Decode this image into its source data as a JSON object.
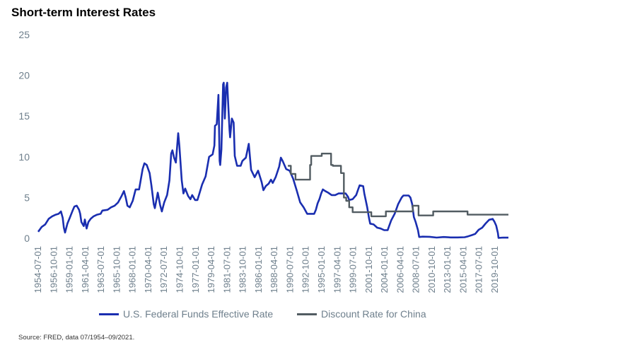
{
  "title": "Short-term Interest Rates",
  "source": "Source: FRED, data 07/1954–09/2021.",
  "colors": {
    "fed": "#1a2eb0",
    "china": "#525c62",
    "tick": "#6e7f8c"
  },
  "chart_data": {
    "type": "line",
    "title": "Short-term Interest Rates",
    "ylim": [
      0,
      25
    ],
    "yticks": [
      0,
      5,
      10,
      15,
      20,
      25
    ],
    "grid": false,
    "legend_position": "bottom",
    "x_range": [
      "1954-07-01",
      "2021-09-01"
    ],
    "x_tick_labels": [
      "1954-07-01",
      "1956-10-01",
      "1959-01-01",
      "1961-04-01",
      "1963-07-01",
      "1965-10-01",
      "1968-01-01",
      "1970-04-01",
      "1972-07-01",
      "1974-10-01",
      "1977-01-01",
      "1979-04-01",
      "1981-07-01",
      "1983-10-01",
      "1986-01-01",
      "1988-04-01",
      "1990-07-01",
      "1992-10-01",
      "1995-01-01",
      "1997-04-01",
      "1999-07-01",
      "2001-10-01",
      "2004-01-01",
      "2006-04-01",
      "2008-07-01",
      "2010-10-01",
      "2013-01-01",
      "2015-04-01",
      "2017-07-01",
      "2019-10-01"
    ],
    "series": [
      {
        "name": "U.S. Federal Funds Effective Rate",
        "color": "#1a2eb0",
        "step": false,
        "points": [
          [
            "1954-07",
            0.8
          ],
          [
            "1955-01",
            1.4
          ],
          [
            "1955-07",
            1.7
          ],
          [
            "1956-01",
            2.4
          ],
          [
            "1956-07",
            2.7
          ],
          [
            "1957-01",
            2.9
          ],
          [
            "1957-06",
            3.0
          ],
          [
            "1957-10",
            3.3
          ],
          [
            "1958-01",
            2.5
          ],
          [
            "1958-03",
            1.3
          ],
          [
            "1958-05",
            0.7
          ],
          [
            "1958-09",
            1.8
          ],
          [
            "1959-01",
            2.5
          ],
          [
            "1959-06",
            3.4
          ],
          [
            "1959-09",
            3.9
          ],
          [
            "1960-01",
            4.0
          ],
          [
            "1960-05",
            3.5
          ],
          [
            "1960-07",
            3.0
          ],
          [
            "1960-09",
            2.0
          ],
          [
            "1961-01",
            1.5
          ],
          [
            "1961-03",
            2.3
          ],
          [
            "1961-06",
            1.2
          ],
          [
            "1961-09",
            2.0
          ],
          [
            "1962-01",
            2.4
          ],
          [
            "1962-06",
            2.7
          ],
          [
            "1962-12",
            2.9
          ],
          [
            "1963-06",
            3.0
          ],
          [
            "1963-09",
            3.4
          ],
          [
            "1964-06",
            3.5
          ],
          [
            "1964-12",
            3.8
          ],
          [
            "1965-06",
            4.0
          ],
          [
            "1965-12",
            4.4
          ],
          [
            "1966-06",
            5.2
          ],
          [
            "1966-10",
            5.8
          ],
          [
            "1967-01",
            5.0
          ],
          [
            "1967-04",
            4.0
          ],
          [
            "1967-08",
            3.8
          ],
          [
            "1968-01",
            4.6
          ],
          [
            "1968-06",
            6.0
          ],
          [
            "1968-12",
            6.0
          ],
          [
            "1969-06",
            8.5
          ],
          [
            "1969-09",
            9.2
          ],
          [
            "1970-01",
            9.0
          ],
          [
            "1970-06",
            8.0
          ],
          [
            "1970-09",
            6.5
          ],
          [
            "1971-01",
            4.2
          ],
          [
            "1971-03",
            3.7
          ],
          [
            "1971-08",
            5.6
          ],
          [
            "1971-12",
            4.1
          ],
          [
            "1972-03",
            3.3
          ],
          [
            "1972-07",
            4.4
          ],
          [
            "1972-12",
            5.3
          ],
          [
            "1973-04",
            7.1
          ],
          [
            "1973-07",
            10.4
          ],
          [
            "1973-09",
            10.8
          ],
          [
            "1973-12",
            9.9
          ],
          [
            "1974-03",
            9.3
          ],
          [
            "1974-07",
            12.9
          ],
          [
            "1974-09",
            11.3
          ],
          [
            "1975-01",
            7.1
          ],
          [
            "1975-04",
            5.5
          ],
          [
            "1975-07",
            6.1
          ],
          [
            "1975-12",
            5.2
          ],
          [
            "1976-04",
            4.8
          ],
          [
            "1976-07",
            5.3
          ],
          [
            "1976-12",
            4.7
          ],
          [
            "1977-04",
            4.7
          ],
          [
            "1977-07",
            5.4
          ],
          [
            "1977-12",
            6.6
          ],
          [
            "1978-06",
            7.6
          ],
          [
            "1978-12",
            10.0
          ],
          [
            "1979-06",
            10.3
          ],
          [
            "1979-09",
            11.4
          ],
          [
            "1979-10",
            13.8
          ],
          [
            "1980-01",
            14.0
          ],
          [
            "1980-04",
            17.6
          ],
          [
            "1980-06",
            9.5
          ],
          [
            "1980-07",
            9.0
          ],
          [
            "1980-09",
            10.9
          ],
          [
            "1980-12",
            18.9
          ],
          [
            "1981-01",
            19.1
          ],
          [
            "1981-03",
            14.7
          ],
          [
            "1981-05",
            18.5
          ],
          [
            "1981-07",
            19.1
          ],
          [
            "1981-09",
            16.0
          ],
          [
            "1981-11",
            13.3
          ],
          [
            "1981-12",
            12.4
          ],
          [
            "1982-03",
            14.7
          ],
          [
            "1982-06",
            14.2
          ],
          [
            "1982-08",
            10.1
          ],
          [
            "1982-12",
            8.9
          ],
          [
            "1983-06",
            8.9
          ],
          [
            "1983-09",
            9.5
          ],
          [
            "1984-03",
            9.9
          ],
          [
            "1984-08",
            11.6
          ],
          [
            "1984-12",
            8.4
          ],
          [
            "1985-06",
            7.5
          ],
          [
            "1985-12",
            8.3
          ],
          [
            "1986-06",
            6.9
          ],
          [
            "1986-09",
            5.9
          ],
          [
            "1987-01",
            6.4
          ],
          [
            "1987-06",
            6.7
          ],
          [
            "1987-10",
            7.2
          ],
          [
            "1988-01",
            6.8
          ],
          [
            "1988-06",
            7.5
          ],
          [
            "1988-12",
            8.8
          ],
          [
            "1989-03",
            9.9
          ],
          [
            "1989-06",
            9.5
          ],
          [
            "1989-12",
            8.5
          ],
          [
            "1990-06",
            8.3
          ],
          [
            "1990-12",
            7.3
          ],
          [
            "1991-06",
            5.9
          ],
          [
            "1991-12",
            4.4
          ],
          [
            "1992-06",
            3.8
          ],
          [
            "1992-12",
            3.0
          ],
          [
            "1993-06",
            3.0
          ],
          [
            "1993-12",
            3.0
          ],
          [
            "1994-03",
            3.5
          ],
          [
            "1994-06",
            4.3
          ],
          [
            "1994-09",
            4.8
          ],
          [
            "1994-12",
            5.5
          ],
          [
            "1995-03",
            6.0
          ],
          [
            "1995-07",
            5.8
          ],
          [
            "1995-12",
            5.6
          ],
          [
            "1996-06",
            5.3
          ],
          [
            "1996-12",
            5.3
          ],
          [
            "1997-06",
            5.5
          ],
          [
            "1997-12",
            5.5
          ],
          [
            "1998-06",
            5.5
          ],
          [
            "1998-10",
            5.1
          ],
          [
            "1998-12",
            4.7
          ],
          [
            "1999-06",
            4.8
          ],
          [
            "1999-12",
            5.3
          ],
          [
            "2000-03",
            5.9
          ],
          [
            "2000-06",
            6.5
          ],
          [
            "2000-12",
            6.4
          ],
          [
            "2001-02",
            5.5
          ],
          [
            "2001-04",
            4.8
          ],
          [
            "2001-07",
            3.8
          ],
          [
            "2001-10",
            2.5
          ],
          [
            "2001-12",
            1.8
          ],
          [
            "2002-06",
            1.7
          ],
          [
            "2002-12",
            1.3
          ],
          [
            "2003-06",
            1.2
          ],
          [
            "2003-12",
            1.0
          ],
          [
            "2004-06",
            1.0
          ],
          [
            "2004-09",
            1.6
          ],
          [
            "2004-12",
            2.2
          ],
          [
            "2005-06",
            3.0
          ],
          [
            "2005-12",
            4.2
          ],
          [
            "2006-06",
            5.0
          ],
          [
            "2006-09",
            5.25
          ],
          [
            "2007-06",
            5.25
          ],
          [
            "2007-09",
            5.0
          ],
          [
            "2007-12",
            4.2
          ],
          [
            "2008-03",
            2.6
          ],
          [
            "2008-06",
            2.0
          ],
          [
            "2008-10",
            1.0
          ],
          [
            "2008-12",
            0.16
          ],
          [
            "2009-06",
            0.2
          ],
          [
            "2010-06",
            0.18
          ],
          [
            "2011-06",
            0.09
          ],
          [
            "2012-06",
            0.16
          ],
          [
            "2013-06",
            0.1
          ],
          [
            "2014-06",
            0.1
          ],
          [
            "2015-06",
            0.13
          ],
          [
            "2015-12",
            0.24
          ],
          [
            "2016-06",
            0.38
          ],
          [
            "2016-12",
            0.54
          ],
          [
            "2017-06",
            1.04
          ],
          [
            "2017-12",
            1.3
          ],
          [
            "2018-06",
            1.82
          ],
          [
            "2018-12",
            2.27
          ],
          [
            "2019-06",
            2.38
          ],
          [
            "2019-09",
            2.04
          ],
          [
            "2019-12",
            1.55
          ],
          [
            "2020-03",
            0.65
          ],
          [
            "2020-04",
            0.05
          ],
          [
            "2020-12",
            0.09
          ],
          [
            "2021-09",
            0.08
          ]
        ]
      },
      {
        "name": "Discount Rate for China",
        "color": "#525c62",
        "step": true,
        "points": [
          [
            "1990-03",
            8.9
          ],
          [
            "1990-08",
            7.9
          ],
          [
            "1991-04",
            7.2
          ],
          [
            "1993-05",
            9.0
          ],
          [
            "1993-07",
            10.1
          ],
          [
            "1995-01",
            10.4
          ],
          [
            "1996-05",
            9.0
          ],
          [
            "1996-08",
            8.9
          ],
          [
            "1997-10",
            8.0
          ],
          [
            "1998-03",
            5.0
          ],
          [
            "1998-07",
            4.6
          ],
          [
            "1998-12",
            3.8
          ],
          [
            "1999-06",
            3.2
          ],
          [
            "2002-02",
            2.7
          ],
          [
            "2004-03",
            3.3
          ],
          [
            "2008-01",
            4.0
          ],
          [
            "2008-11",
            2.8
          ],
          [
            "2010-12",
            3.3
          ],
          [
            "2015-11",
            2.9
          ],
          [
            "2021-09",
            2.9
          ]
        ]
      }
    ]
  }
}
